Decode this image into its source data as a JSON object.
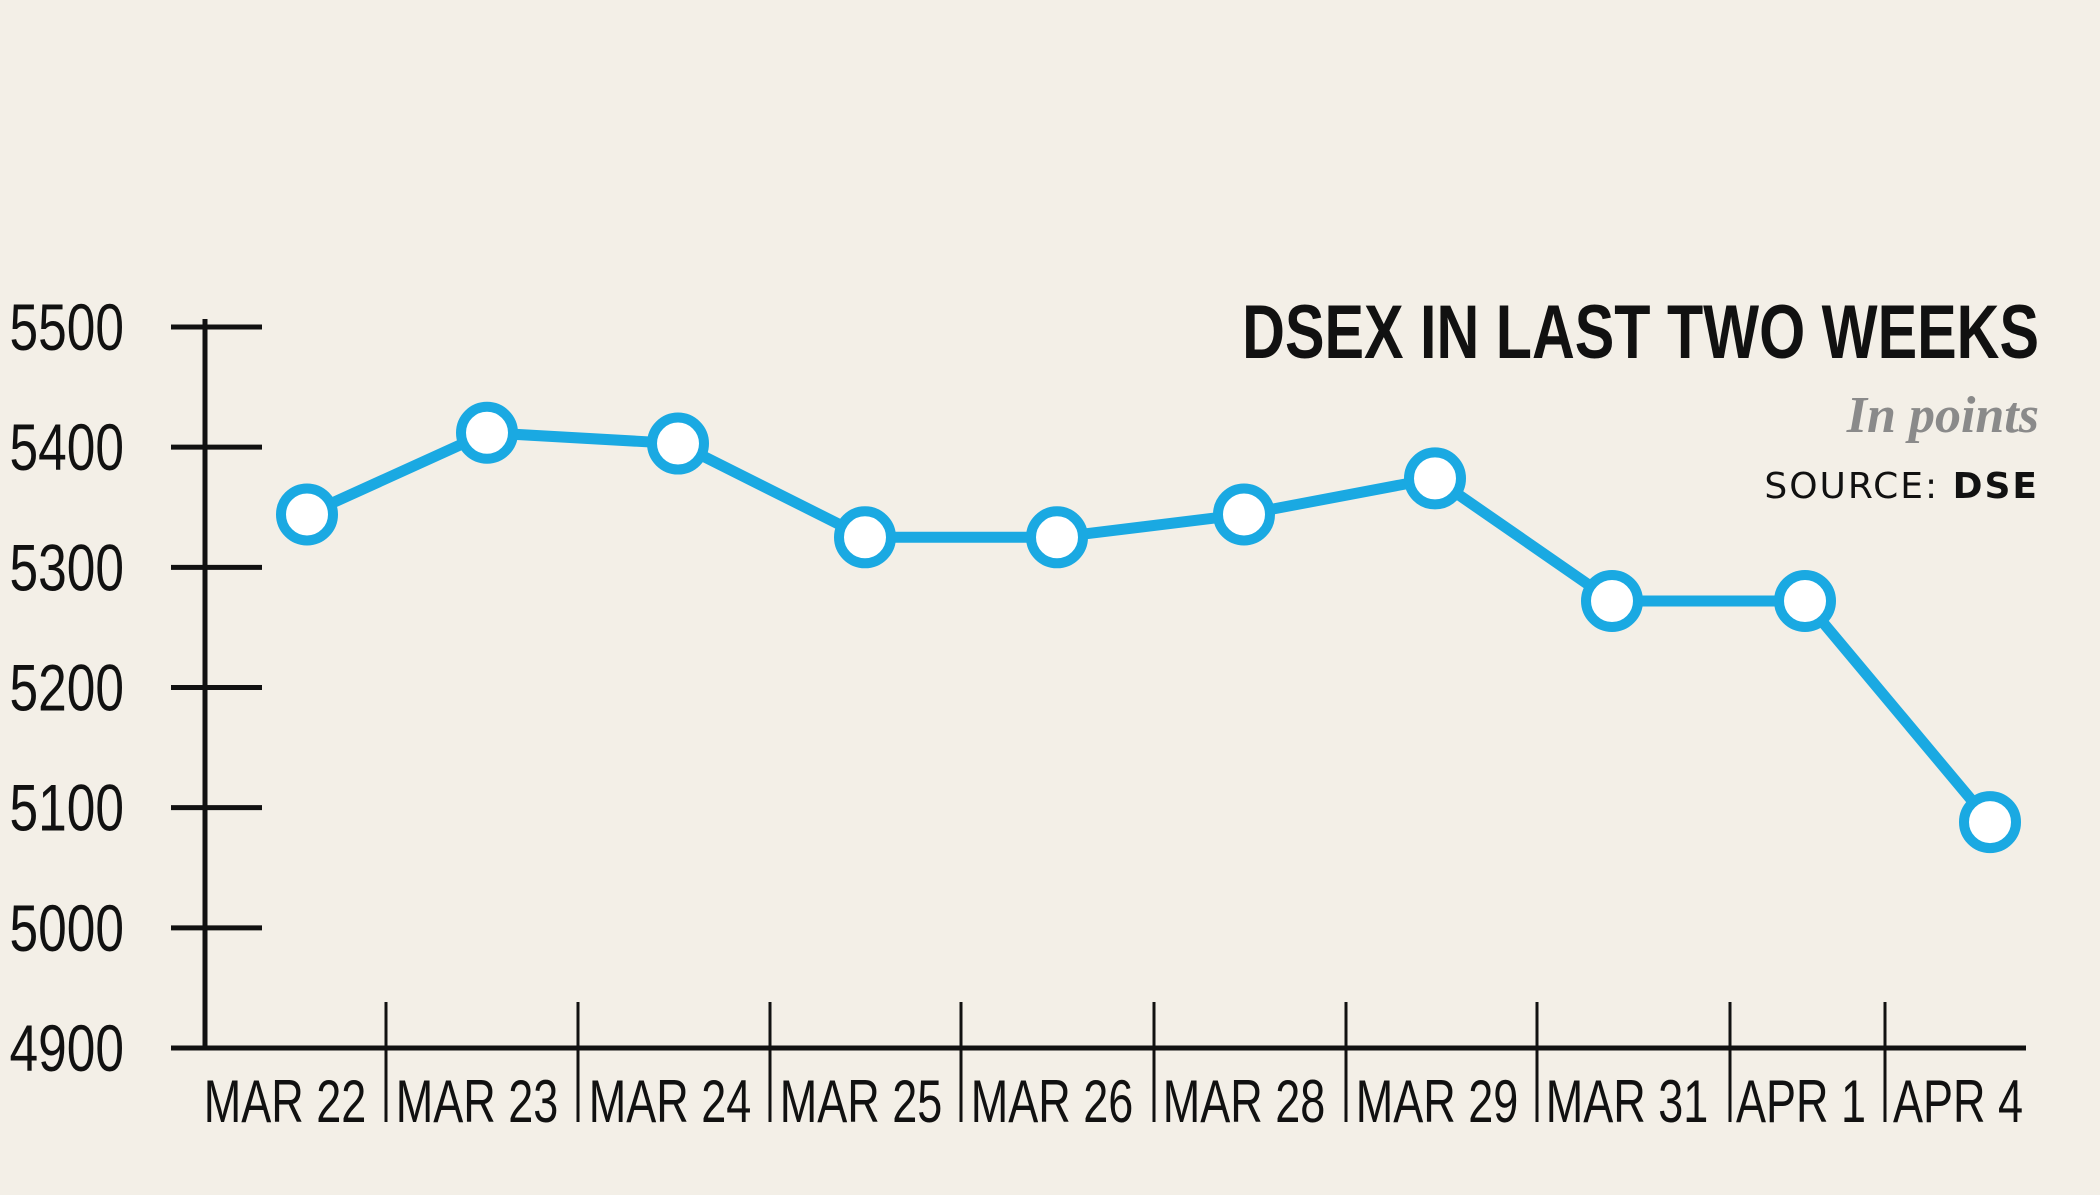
{
  "chart_data": {
    "type": "line",
    "title": "DSEX IN LAST TWO WEEKS",
    "subtitle": "In points",
    "source_label": "SOURCE:",
    "source": "DSE",
    "categories": [
      "MAR 22",
      "MAR 23",
      "MAR 24",
      "MAR 25",
      "MAR 26",
      "MAR 28",
      "MAR 29",
      "MAR 31",
      "APR 1",
      "APR 4"
    ],
    "values": [
      5344,
      5412,
      5403,
      5325,
      5325,
      5344,
      5374,
      5272,
      5272,
      5088
    ],
    "color": "#1aa9e2",
    "ylim": [
      4900,
      5500
    ],
    "yticks": [
      4900,
      5000,
      5100,
      5200,
      5300,
      5400,
      5500
    ]
  }
}
